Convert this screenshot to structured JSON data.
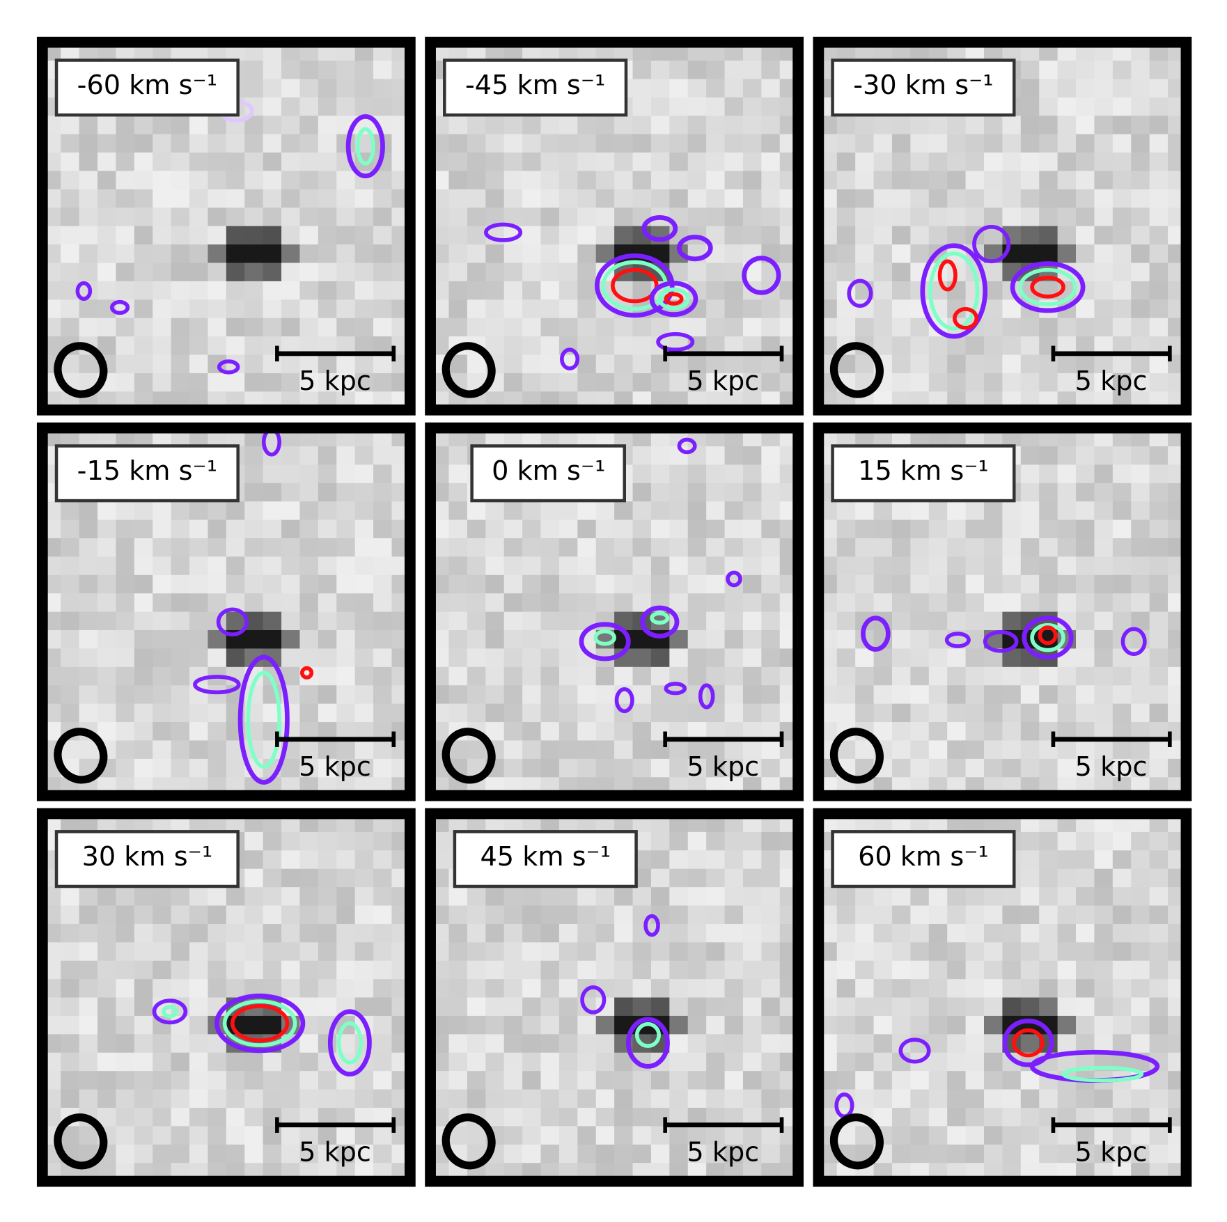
{
  "panels": [
    {
      "label": "-60 km s⁻¹",
      "scale_label": "5 kpc"
    },
    {
      "label": "-45 km s⁻¹",
      "scale_label": "5 kpc"
    },
    {
      "label": "-30 km s⁻¹",
      "scale_label": "5 kpc"
    },
    {
      "label": "-15 km s⁻¹",
      "scale_label": "5 kpc"
    },
    {
      "label": "0 km s⁻¹",
      "scale_label": "5 kpc"
    },
    {
      "label": "15 km s⁻¹",
      "scale_label": "5 kpc"
    },
    {
      "label": "30 km s⁻¹",
      "scale_label": "5 kpc"
    },
    {
      "label": "45 km s⁻¹",
      "scale_label": "5 kpc"
    },
    {
      "label": "60 km s⁻¹",
      "scale_label": "5 kpc"
    }
  ]
}
